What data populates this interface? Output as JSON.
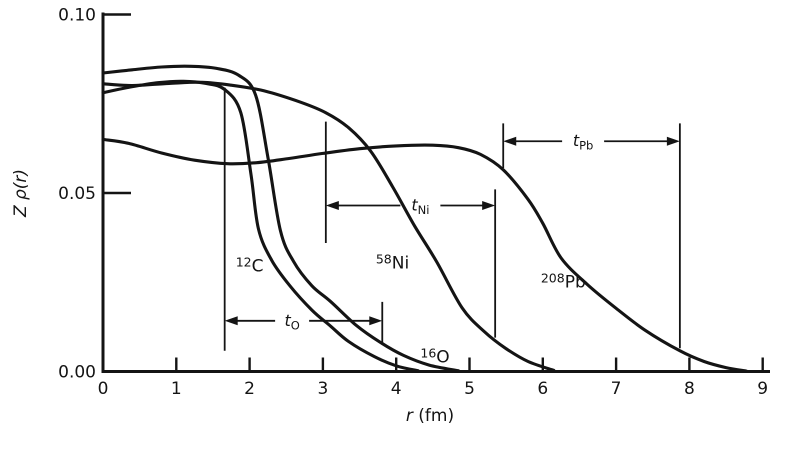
{
  "figure": {
    "background": "#ffffff",
    "ink": "#141414"
  },
  "chart_data": {
    "type": "line",
    "title": "",
    "xlabel": "r (fm)",
    "xlabel_var": "r",
    "xlabel_rest": " (fm)",
    "ylabel": "Z ρ(r)",
    "xlim": [
      0,
      9
    ],
    "ylim": [
      0,
      0.1
    ],
    "grid": false,
    "legend_position": "none",
    "x_ticks": [
      0,
      1,
      2,
      3,
      4,
      5,
      6,
      7,
      8,
      9
    ],
    "y_ticks": [
      {
        "value": 0.0,
        "label": "0.00"
      },
      {
        "value": 0.05,
        "label": "0.05"
      },
      {
        "value": 0.1,
        "label": "0.10"
      }
    ],
    "series": [
      {
        "id": "12C",
        "mass": "12",
        "symbol": "C",
        "label_r": 2.0,
        "label_v": 0.0297,
        "points": [
          [
            0,
            0.0781
          ],
          [
            0.35,
            0.0796
          ],
          [
            0.75,
            0.0809
          ],
          [
            1.1,
            0.0813
          ],
          [
            1.4,
            0.0807
          ],
          [
            1.66,
            0.079
          ],
          [
            1.88,
            0.0725
          ],
          [
            2.02,
            0.055
          ],
          [
            2.12,
            0.04
          ],
          [
            2.3,
            0.0312
          ],
          [
            2.55,
            0.024
          ],
          [
            2.85,
            0.0172
          ],
          [
            3.1,
            0.0128
          ],
          [
            3.35,
            0.0084
          ],
          [
            3.7,
            0.0042
          ],
          [
            4.0,
            0.0016
          ],
          [
            4.3,
            0.0002
          ]
        ]
      },
      {
        "id": "16O",
        "mass": "16",
        "symbol": "O",
        "label_r": 4.53,
        "label_v": 0.0042,
        "points": [
          [
            0,
            0.0836
          ],
          [
            0.4,
            0.0845
          ],
          [
            0.8,
            0.0853
          ],
          [
            1.2,
            0.0855
          ],
          [
            1.55,
            0.0849
          ],
          [
            1.85,
            0.083
          ],
          [
            2.08,
            0.0775
          ],
          [
            2.25,
            0.06
          ],
          [
            2.42,
            0.0395
          ],
          [
            2.6,
            0.0308
          ],
          [
            2.85,
            0.024
          ],
          [
            3.1,
            0.0197
          ],
          [
            3.45,
            0.013
          ],
          [
            3.78,
            0.0082
          ],
          [
            4.1,
            0.0045
          ],
          [
            4.45,
            0.0018
          ],
          [
            4.85,
            0.0002
          ]
        ]
      },
      {
        "id": "58Ni",
        "mass": "58",
        "symbol": "Ni",
        "label_r": 3.95,
        "label_v": 0.0305,
        "points": [
          [
            0,
            0.0806
          ],
          [
            0.4,
            0.0801
          ],
          [
            0.9,
            0.0807
          ],
          [
            1.35,
            0.081
          ],
          [
            1.75,
            0.0802
          ],
          [
            2.2,
            0.0786
          ],
          [
            2.7,
            0.0754
          ],
          [
            3.04,
            0.0725
          ],
          [
            3.35,
            0.0683
          ],
          [
            3.65,
            0.0618
          ],
          [
            3.95,
            0.0518
          ],
          [
            4.25,
            0.0408
          ],
          [
            4.55,
            0.0308
          ],
          [
            4.9,
            0.0178
          ],
          [
            5.2,
            0.0112
          ],
          [
            5.5,
            0.0064
          ],
          [
            5.8,
            0.0028
          ],
          [
            6.15,
            0.0003
          ]
        ]
      },
      {
        "id": "208Pb",
        "mass": "208",
        "symbol": "Pb",
        "label_r": 6.28,
        "label_v": 0.0252,
        "points": [
          [
            0,
            0.065
          ],
          [
            0.35,
            0.0639
          ],
          [
            0.8,
            0.0612
          ],
          [
            1.25,
            0.0592
          ],
          [
            1.7,
            0.0582
          ],
          [
            2.1,
            0.0585
          ],
          [
            2.55,
            0.0597
          ],
          [
            3.0,
            0.0611
          ],
          [
            3.5,
            0.0624
          ],
          [
            4.0,
            0.0632
          ],
          [
            4.5,
            0.0634
          ],
          [
            4.85,
            0.0627
          ],
          [
            5.15,
            0.0608
          ],
          [
            5.46,
            0.0565
          ],
          [
            5.8,
            0.0482
          ],
          [
            6.0,
            0.0415
          ],
          [
            6.25,
            0.0318
          ],
          [
            6.6,
            0.0245
          ],
          [
            7.0,
            0.0177
          ],
          [
            7.4,
            0.0115
          ],
          [
            7.87,
            0.0058
          ],
          [
            8.2,
            0.0028
          ],
          [
            8.5,
            0.0011
          ],
          [
            8.78,
            0.0001
          ]
        ]
      }
    ],
    "surface_thickness_markers": [
      {
        "id": "t_O",
        "sym": "t",
        "sub": "O",
        "arrow_v": 0.0142,
        "x1": 1.66,
        "x2": 3.81,
        "label_r": 2.58,
        "label_gap": 17,
        "lines": [
          {
            "r": 1.66,
            "v1": 0.0058,
            "v2": 0.0795
          },
          {
            "r": 3.81,
            "v1": 0.0075,
            "v2": 0.0195
          }
        ]
      },
      {
        "id": "t_Ni",
        "sym": "t",
        "sub": "Ni",
        "arrow_v": 0.0465,
        "x1": 3.04,
        "x2": 5.35,
        "label_r": 4.33,
        "label_gap": 20,
        "lines": [
          {
            "r": 3.04,
            "v1": 0.036,
            "v2": 0.07
          },
          {
            "r": 5.35,
            "v1": 0.0095,
            "v2": 0.051
          }
        ]
      },
      {
        "id": "t_Pb",
        "sym": "t",
        "sub": "Pb",
        "arrow_v": 0.0645,
        "x1": 5.46,
        "x2": 7.87,
        "label_r": 6.55,
        "label_gap": 21,
        "lines": [
          {
            "r": 5.46,
            "v1": 0.057,
            "v2": 0.0695
          },
          {
            "r": 7.87,
            "v1": 0.0065,
            "v2": 0.0695
          }
        ]
      }
    ]
  }
}
